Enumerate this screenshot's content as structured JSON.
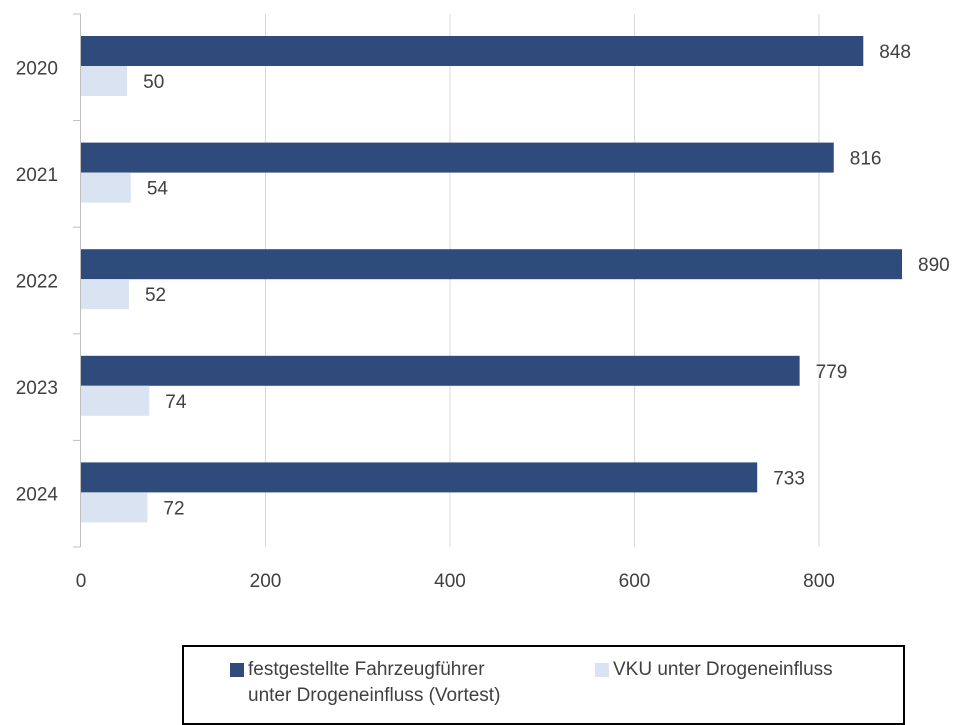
{
  "chart_data": {
    "type": "bar",
    "orientation": "horizontal",
    "title": "",
    "xlabel": "",
    "ylabel": "",
    "categories": [
      "2020",
      "2021",
      "2022",
      "2023",
      "2024"
    ],
    "series": [
      {
        "name": "festgestellte Fahrzeugführer unter Drogeneinfluss (Vortest)",
        "values": [
          848,
          816,
          890,
          779,
          733
        ],
        "color": "#2f4b7c"
      },
      {
        "name": "VKU unter Drogeneinfluss",
        "values": [
          50,
          54,
          52,
          74,
          72
        ],
        "color": "#dae3f1"
      }
    ],
    "xlim": [
      0,
      950
    ],
    "xticks": [
      0,
      200,
      400,
      600,
      800
    ],
    "grid": "vertical",
    "data_labels": true,
    "legend_position": "bottom"
  },
  "legend": {
    "items": [
      {
        "line1": "festgestellte Fahrzeugführer",
        "line2": "unter Drogeneinfluss (Vortest)"
      },
      {
        "line1": "VKU unter Drogeneinfluss",
        "line2": ""
      }
    ]
  }
}
